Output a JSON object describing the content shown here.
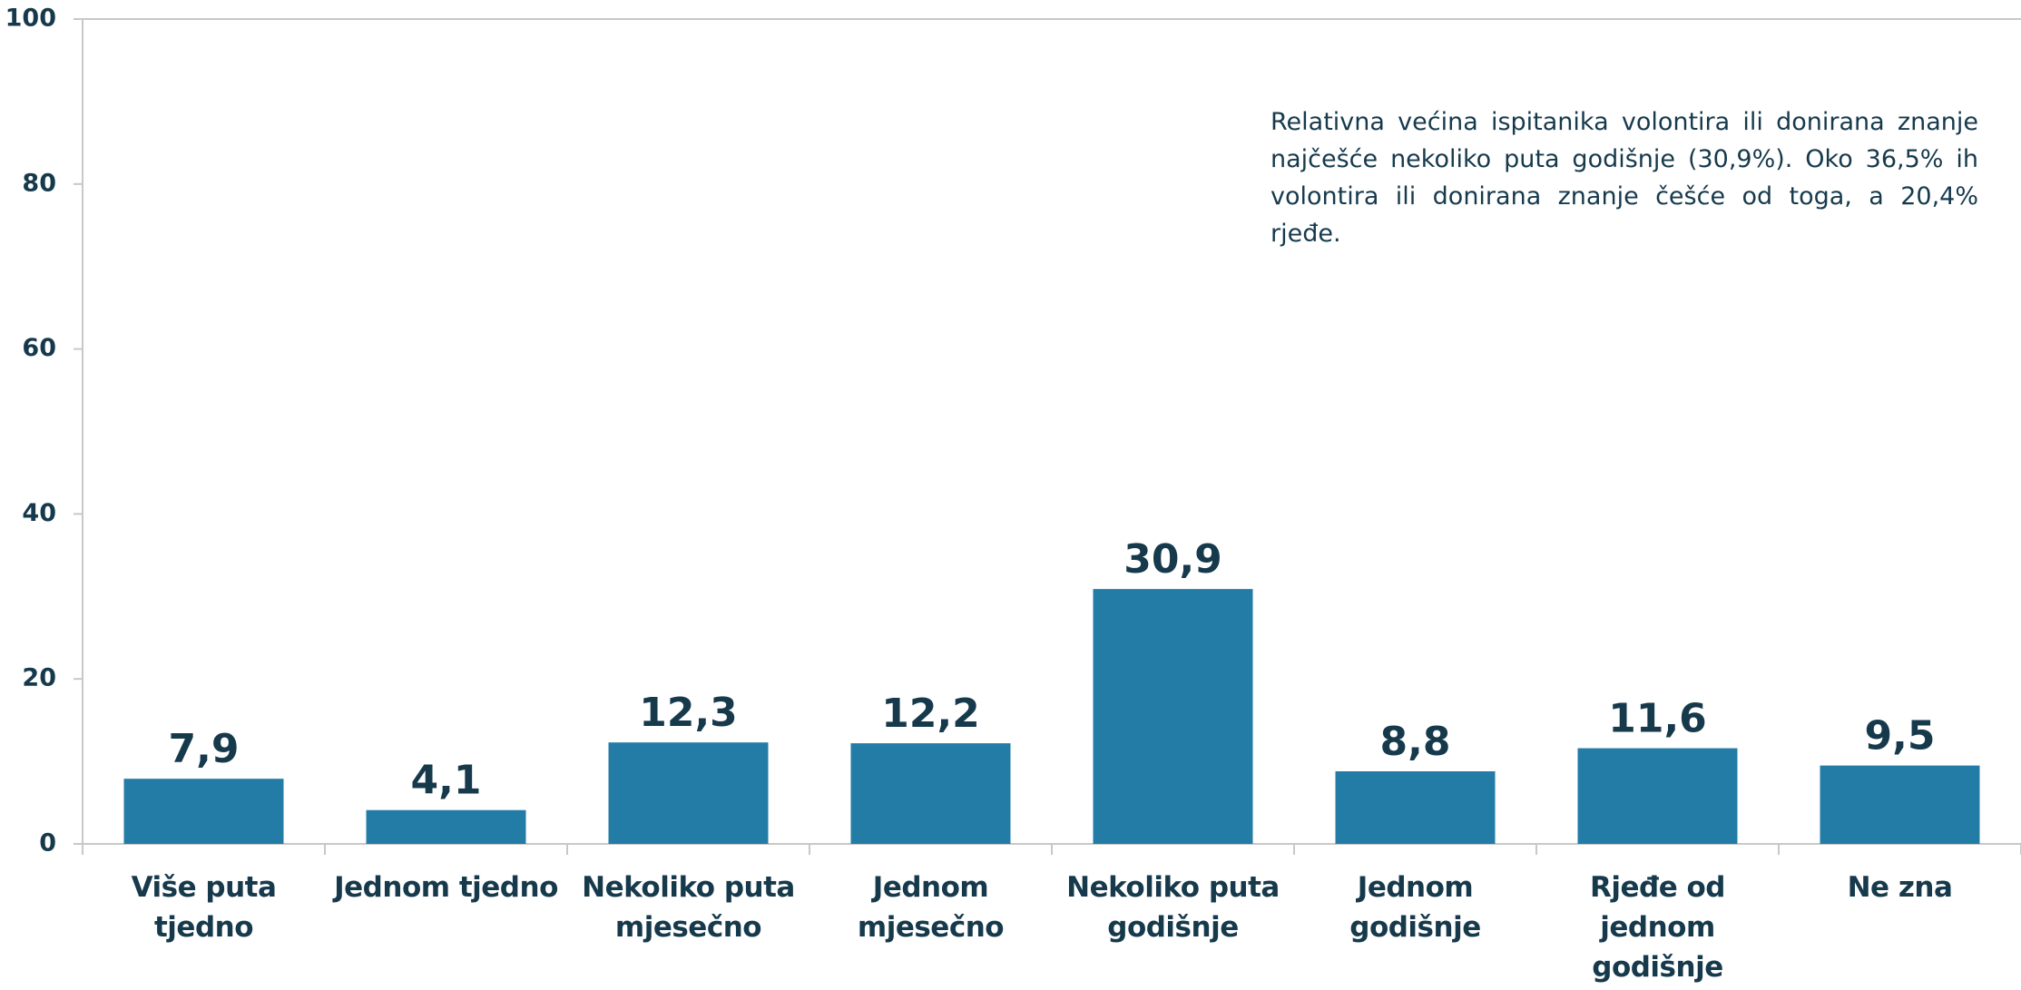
{
  "chart_data": {
    "type": "bar",
    "annotation": "Relativna većina ispitanika volontira ili donirana znanje najčešće nekoliko puta godišnje (30,9%).  Oko 36,5% ih volontira ili donirana znanje češće od toga, a 20,4% rjeđe.",
    "categories": [
      "Više puta tjedno",
      "Jednom tjedno",
      "Nekoliko puta mjesečno",
      "Jednom mjesečno",
      "Nekoliko puta godišnje",
      "Jednom godišnje",
      "Rjeđe od jednom godišnje",
      "Ne zna"
    ],
    "values": [
      7.9,
      4.1,
      12.3,
      12.2,
      30.9,
      8.8,
      11.6,
      9.5
    ],
    "value_labels": [
      "7,9",
      "4,1",
      "12,3",
      "12,2",
      "30,9",
      "8,8",
      "11,6",
      "9,5"
    ],
    "color": "#237ca6",
    "ylim": [
      0,
      100
    ],
    "yticks": [
      0,
      20,
      40,
      60,
      80,
      100
    ],
    "grid": false
  }
}
